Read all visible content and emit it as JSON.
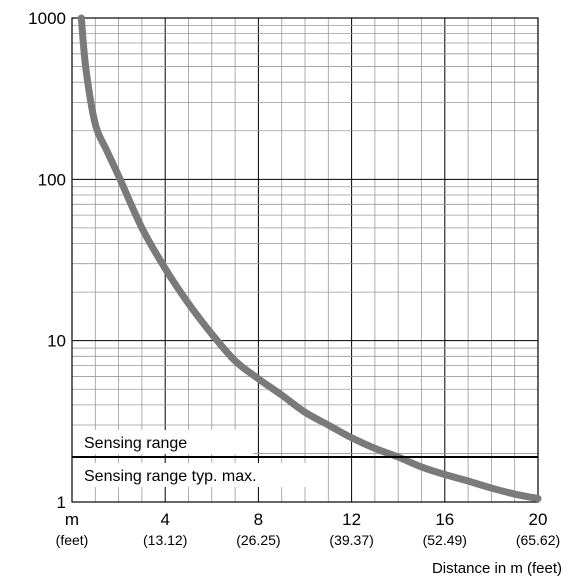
{
  "chart_data": {
    "type": "line",
    "title": "",
    "xlabel": "Distance in m (feet)",
    "ylabel": "",
    "y_scale": "log",
    "ylim": [
      1,
      1000
    ],
    "xlim": [
      0,
      20
    ],
    "grid": true,
    "y_ticks": [
      "1",
      "10",
      "100",
      "1000"
    ],
    "x_tick_values": [
      0,
      4,
      8,
      12,
      16,
      20
    ],
    "x_ticks": [
      "m",
      "4",
      "8",
      "12",
      "16",
      "20"
    ],
    "x_ticks_secondary": [
      "(feet)",
      "(13.12)",
      "(26.25)",
      "(39.37)",
      "(52.49)",
      "(65.62)"
    ],
    "series": [
      {
        "color": "#7a7a7a",
        "x": [
          0.4,
          0.6,
          1.0,
          1.5,
          2.0,
          3.0,
          4.0,
          5.0,
          6.0,
          7.0,
          8.0,
          9.0,
          10.0,
          11.0,
          12.0,
          13.0,
          14.0,
          15.0,
          16.0,
          17.0,
          18.0,
          19.0,
          20.0
        ],
        "y": [
          1000,
          480,
          220,
          150,
          105,
          50,
          28,
          17,
          11,
          7.5,
          5.8,
          4.6,
          3.6,
          3.0,
          2.5,
          2.15,
          1.9,
          1.65,
          1.48,
          1.35,
          1.22,
          1.12,
          1.05
        ]
      }
    ],
    "threshold": {
      "value": 1.9,
      "label_above": "Sensing range",
      "label_below": "Sensing range typ. max."
    }
  }
}
